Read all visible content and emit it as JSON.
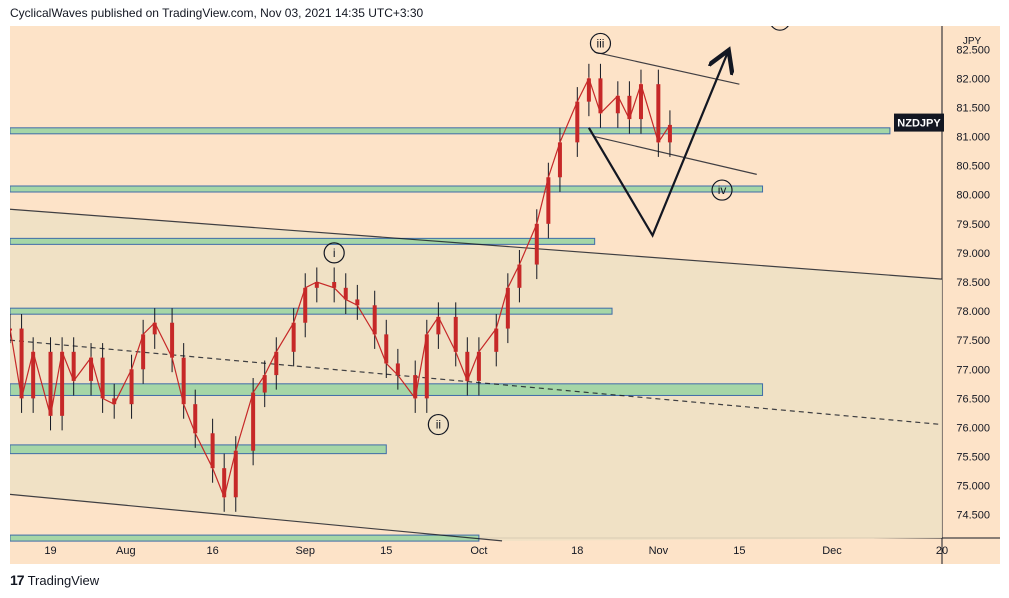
{
  "header": {
    "publish_line": "CyclicalWaves published on TradingView.com, Nov 03, 2021 14:35 UTC+3:30"
  },
  "footer": {
    "logo_glyph": "17",
    "brand": "TradingView"
  },
  "colors": {
    "background": "#fde3c8",
    "zone_fill": "#a5d6a7",
    "zone_border": "#3f6ba8",
    "candle": "#c62828",
    "wick": "#131722",
    "trendline": "#131722",
    "label_bg": "#131722",
    "label_text": "#ffffff"
  },
  "chart_data": {
    "type": "line",
    "symbol": "NZDJPY",
    "currency": "JPY",
    "x_tick_labels": [
      "19",
      "Aug",
      "16",
      "Sep",
      "15",
      "Oct",
      "18",
      "Nov",
      "15",
      "Dec",
      "20"
    ],
    "y_tick_labels": [
      "74.500",
      "75.000",
      "75.500",
      "76.000",
      "76.500",
      "77.000",
      "77.500",
      "78.000",
      "78.500",
      "79.000",
      "79.500",
      "80.000",
      "80.500",
      "81.000",
      "81.500",
      "82.000",
      "82.500"
    ],
    "ylim": [
      74.1,
      82.9
    ],
    "x_start": "2021-07-12",
    "x_end": "2021-12-20",
    "last_price_label": "NZDJPY",
    "last_price": 81.24,
    "series": [
      {
        "values_x": [
          "2021-07-12",
          "2021-07-14",
          "2021-07-16",
          "2021-07-19",
          "2021-07-21",
          "2021-07-23",
          "2021-07-26",
          "2021-07-28",
          "2021-07-30",
          "2021-08-02",
          "2021-08-04",
          "2021-08-06",
          "2021-08-09",
          "2021-08-11",
          "2021-08-13",
          "2021-08-16",
          "2021-08-18",
          "2021-08-20",
          "2021-08-23",
          "2021-08-25",
          "2021-08-27",
          "2021-08-30",
          "2021-09-01",
          "2021-09-03",
          "2021-09-06",
          "2021-09-08",
          "2021-09-10",
          "2021-09-13",
          "2021-09-15",
          "2021-09-17",
          "2021-09-20",
          "2021-09-22",
          "2021-09-24",
          "2021-09-27",
          "2021-09-29",
          "2021-10-01",
          "2021-10-04",
          "2021-10-06",
          "2021-10-08",
          "2021-10-11",
          "2021-10-13",
          "2021-10-15",
          "2021-10-18",
          "2021-10-20",
          "2021-10-22",
          "2021-10-25",
          "2021-10-27",
          "2021-10-29",
          "2021-11-01",
          "2021-11-03"
        ],
        "values_y": [
          77.7,
          76.5,
          77.3,
          76.2,
          77.3,
          76.8,
          77.2,
          76.5,
          76.4,
          77.0,
          77.6,
          77.8,
          77.2,
          76.4,
          75.9,
          75.3,
          74.8,
          75.6,
          76.6,
          76.9,
          77.3,
          77.8,
          78.4,
          78.5,
          78.4,
          78.2,
          78.1,
          77.6,
          77.1,
          76.9,
          76.5,
          77.6,
          77.9,
          77.3,
          76.8,
          77.3,
          77.7,
          78.4,
          78.8,
          79.5,
          80.3,
          80.9,
          81.6,
          82.0,
          81.4,
          81.7,
          81.3,
          81.9,
          80.9,
          81.2
        ]
      }
    ],
    "support_resistance_zones": [
      {
        "low": 74.05,
        "high": 74.15,
        "x_from": "2021-07-12",
        "x_to": "2021-10-01"
      },
      {
        "low": 75.55,
        "high": 75.7,
        "x_from": "2021-07-12",
        "x_to": "2021-09-15"
      },
      {
        "low": 76.55,
        "high": 76.75,
        "x_from": "2021-07-12",
        "x_to": "2021-11-19"
      },
      {
        "low": 77.95,
        "high": 78.05,
        "x_from": "2021-07-12",
        "x_to": "2021-10-24"
      },
      {
        "low": 79.15,
        "high": 79.25,
        "x_from": "2021-07-12",
        "x_to": "2021-10-21"
      },
      {
        "low": 80.05,
        "high": 80.15,
        "x_from": "2021-07-12",
        "x_to": "2021-11-19"
      },
      {
        "low": 81.05,
        "high": 81.15,
        "x_from": "2021-07-12",
        "x_to": "2021-12-11"
      }
    ],
    "trendlines": [
      {
        "x1": "2021-07-12",
        "y1": 79.75,
        "x2": "2021-12-20",
        "y2": 78.55,
        "style": "solid"
      },
      {
        "x1": "2021-07-12",
        "y1": 74.85,
        "x2": "2021-10-05",
        "y2": 74.05,
        "style": "solid"
      },
      {
        "x1": "2021-07-12",
        "y1": 77.5,
        "x2": "2021-12-20",
        "y2": 76.05,
        "style": "dashed"
      },
      {
        "x1": "2021-10-21",
        "y1": 82.45,
        "x2": "2021-11-15",
        "y2": 81.9,
        "style": "solid"
      },
      {
        "x1": "2021-10-21",
        "y1": 81.0,
        "x2": "2021-11-18",
        "y2": 80.35,
        "style": "solid"
      }
    ],
    "projection_path": [
      {
        "x": "2021-10-20",
        "y": 81.15
      },
      {
        "x": "2021-10-31",
        "y": 79.3
      },
      {
        "x": "2021-11-13",
        "y": 82.45
      }
    ],
    "wave_labels": [
      {
        "label": "i",
        "x": "2021-09-06",
        "y": 79.0
      },
      {
        "label": "ii",
        "x": "2021-09-24",
        "y": 76.05
      },
      {
        "label": "iii",
        "x": "2021-10-22",
        "y": 82.6
      },
      {
        "label": "iv",
        "x": "2021-11-12",
        "y": 80.08
      },
      {
        "label": "v",
        "x": "2021-11-22",
        "y": 83.0
      }
    ]
  }
}
